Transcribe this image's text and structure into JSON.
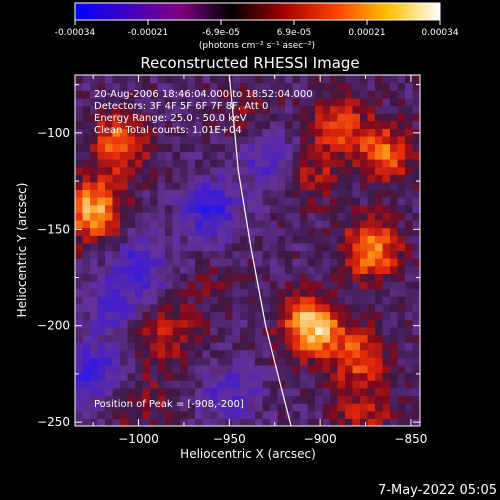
{
  "title": "Reconstructed RHESSI Image",
  "colorbar": {
    "ticks": [
      "-0.00034",
      "-0.00021",
      "-6.9e-05",
      "6.9e-05",
      "0.00021",
      "0.00034"
    ],
    "units_label": "(photons cm⁻² s⁻¹ asec⁻²)",
    "colors": [
      "#0000ff",
      "#4000c0",
      "#800080",
      "#000000",
      "#a00000",
      "#ff4000",
      "#ffc000",
      "#ffffff"
    ]
  },
  "info": {
    "time": "20-Aug-2006 18:46:04.000 to 18:52:04.000",
    "detectors": "Detectors: 3F 4F 5F 6F 7F 8F, Att 0",
    "energy": "Energy Range: 25.0 - 50.0 keV",
    "clean": "Clean     Total counts: 1.01E+04",
    "peak": "Position of Peak = [-908,-200]"
  },
  "footer_date": "7-May-2022 05:05",
  "chart_data": {
    "type": "heatmap",
    "title": "Reconstructed RHESSI Image",
    "xlabel": "Heliocentric X (arcsec)",
    "ylabel": "Heliocentric Y (arcsec)",
    "xlim": [
      -1035,
      -845
    ],
    "ylim": [
      -252,
      -70
    ],
    "x_ticks": [
      -1000,
      -950,
      -900,
      -850
    ],
    "y_ticks": [
      -100,
      -150,
      -200,
      -250
    ],
    "x_tick_labels": [
      "−1000",
      "−950",
      "−900",
      "−850"
    ],
    "y_tick_labels": [
      "−100",
      "−150",
      "−200",
      "−250"
    ],
    "grid": false,
    "colormap": "red-temperature (blue-purple negative, black zero, red-yellow-white positive)",
    "color_range": [
      -0.00034,
      0.00034
    ],
    "limb_curve": [
      [
        -950,
        -70
      ],
      [
        -945,
        -120
      ],
      [
        -938,
        -160
      ],
      [
        -930,
        -200
      ],
      [
        -922,
        -230
      ],
      [
        -916,
        -252
      ]
    ],
    "hotspots": [
      {
        "x": -1010,
        "y": -105,
        "value": 0.00024
      },
      {
        "x": -1025,
        "y": -140,
        "value": 0.0003
      },
      {
        "x": -985,
        "y": -205,
        "value": 0.00015
      },
      {
        "x": -905,
        "y": -200,
        "value": 0.00034
      },
      {
        "x": -880,
        "y": -215,
        "value": 0.0002
      },
      {
        "x": -872,
        "y": -160,
        "value": 0.00027
      },
      {
        "x": -865,
        "y": -110,
        "value": 0.00022
      },
      {
        "x": -890,
        "y": -95,
        "value": 0.00018
      },
      {
        "x": -905,
        "y": -120,
        "value": 0.00012
      },
      {
        "x": -940,
        "y": -90,
        "value": 0.0001
      },
      {
        "x": -1000,
        "y": -240,
        "value": 0.0001
      },
      {
        "x": -875,
        "y": -245,
        "value": 0.00014
      },
      {
        "x": -960,
        "y": -180,
        "value": 6e-05
      }
    ],
    "coldspots": [
      {
        "x": -960,
        "y": -140,
        "value": -0.00022
      },
      {
        "x": -1000,
        "y": -170,
        "value": -0.00018
      },
      {
        "x": -1025,
        "y": -225,
        "value": -0.0002
      },
      {
        "x": -930,
        "y": -110,
        "value": -0.00016
      },
      {
        "x": -950,
        "y": -235,
        "value": -0.00014
      },
      {
        "x": -1015,
        "y": -190,
        "value": -0.00012
      }
    ]
  }
}
